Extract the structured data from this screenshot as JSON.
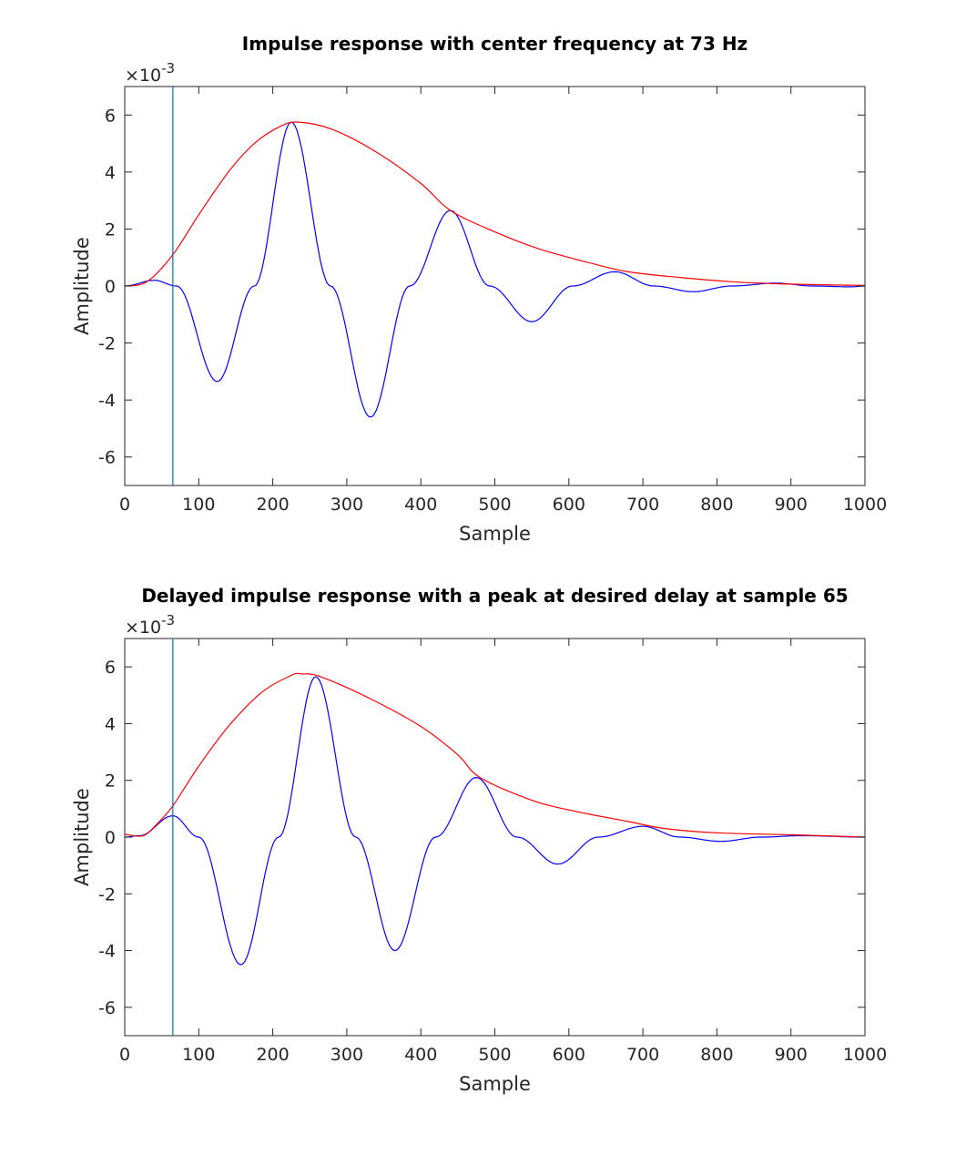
{
  "chart_data": [
    {
      "type": "line",
      "title": "Impulse response with center frequency at 73 Hz",
      "xlabel": "Sample",
      "ylabel": "Amplitude",
      "exponent": "×10",
      "exponent_power": "-3",
      "xlim": [
        0,
        1000
      ],
      "ylim": [
        -7,
        7
      ],
      "xticks": [
        0,
        100,
        200,
        300,
        400,
        500,
        600,
        700,
        800,
        900,
        1000
      ],
      "yticks": [
        -6,
        -4,
        -2,
        0,
        2,
        4,
        6
      ],
      "vline": 65,
      "vline_color": "#0072BD",
      "series": [
        {
          "color": "#0000FF",
          "x": [
            0,
            40,
            70,
            125,
            175,
            225,
            278,
            332,
            385,
            440,
            493,
            550,
            605,
            662,
            715,
            768,
            820,
            880,
            930,
            980,
            1000
          ],
          "y": [
            0,
            0.2,
            0,
            -3.35,
            0,
            5.75,
            0,
            -4.6,
            0,
            2.65,
            0,
            -1.25,
            0,
            0.5,
            0,
            -0.2,
            0,
            0.1,
            0,
            -0.03,
            0
          ]
        },
        {
          "color": "#FF0000",
          "x": [
            0,
            30,
            65,
            100,
            140,
            175,
            210,
            235,
            280,
            340,
            400,
            440,
            500,
            560,
            630,
            680,
            750,
            820,
            880,
            950,
            1000
          ],
          "y": [
            0,
            0.15,
            1.1,
            2.5,
            4.0,
            5.0,
            5.6,
            5.75,
            5.5,
            4.7,
            3.6,
            2.65,
            1.9,
            1.3,
            0.8,
            0.5,
            0.3,
            0.15,
            0.08,
            0.04,
            0.02
          ]
        }
      ]
    },
    {
      "type": "line",
      "title": "Delayed impulse response with a peak at desired delay at sample 65",
      "xlabel": "Sample",
      "ylabel": "Amplitude",
      "exponent": "×10",
      "exponent_power": "-3",
      "xlim": [
        0,
        1000
      ],
      "ylim": [
        -7,
        7
      ],
      "xticks": [
        0,
        100,
        200,
        300,
        400,
        500,
        600,
        700,
        800,
        900,
        1000
      ],
      "yticks": [
        -6,
        -4,
        -2,
        0,
        2,
        4,
        6
      ],
      "vline": 65,
      "vline_color": "#0072BD",
      "series": [
        {
          "color": "#0000FF",
          "x": [
            0,
            20,
            65,
            100,
            157,
            208,
            258,
            312,
            365,
            420,
            475,
            530,
            585,
            640,
            700,
            750,
            805,
            860,
            915,
            1000
          ],
          "y": [
            0,
            0.05,
            0.75,
            0,
            -4.5,
            0,
            5.65,
            0,
            -4.0,
            0,
            2.1,
            0,
            -0.95,
            0,
            0.38,
            0,
            -0.15,
            0,
            0.05,
            0
          ]
        },
        {
          "color": "#FF0000",
          "x": [
            0,
            25,
            45,
            65,
            100,
            140,
            185,
            225,
            240,
            265,
            330,
            400,
            450,
            480,
            550,
            610,
            680,
            730,
            800,
            900,
            1000
          ],
          "y": [
            0.1,
            0.05,
            0.5,
            1.1,
            2.5,
            3.9,
            5.1,
            5.7,
            5.75,
            5.65,
            4.9,
            3.9,
            2.9,
            2.1,
            1.3,
            0.9,
            0.55,
            0.3,
            0.15,
            0.08,
            0
          ]
        }
      ]
    }
  ]
}
